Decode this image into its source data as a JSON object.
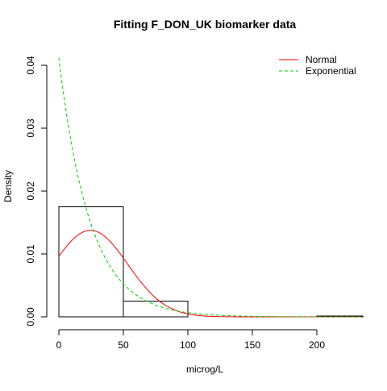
{
  "chart_data": {
    "type": "histogram",
    "title": "Fitting F_DON_UK biomarker data",
    "xlabel": "microg/L",
    "ylabel": "Density",
    "xlim": [
      0,
      235
    ],
    "ylim": [
      0,
      0.04
    ],
    "x_ticks": [
      0,
      50,
      100,
      150,
      200
    ],
    "y_ticks": [
      0.0,
      0.01,
      0.02,
      0.03,
      0.04
    ],
    "y_tick_labels": [
      "0.00",
      "0.01",
      "0.02",
      "0.03",
      "0.04"
    ],
    "grid": false,
    "legend_position": "top-right",
    "bins": [
      {
        "start": 0,
        "end": 50,
        "density": 0.0175
      },
      {
        "start": 50,
        "end": 100,
        "density": 0.0025
      },
      {
        "start": 100,
        "end": 150,
        "density": 0
      },
      {
        "start": 150,
        "end": 200,
        "density": 0
      },
      {
        "start": 200,
        "end": 250,
        "density": 0.00013
      }
    ],
    "series": [
      {
        "name": "Normal",
        "distribution": "normal",
        "mean": 24.5,
        "sd": 29.0,
        "color": "#ff0000",
        "dash": "solid"
      },
      {
        "name": "Exponential",
        "distribution": "exponential",
        "rate": 0.0412,
        "color": "#00cd00",
        "dash": "dashed"
      }
    ]
  }
}
